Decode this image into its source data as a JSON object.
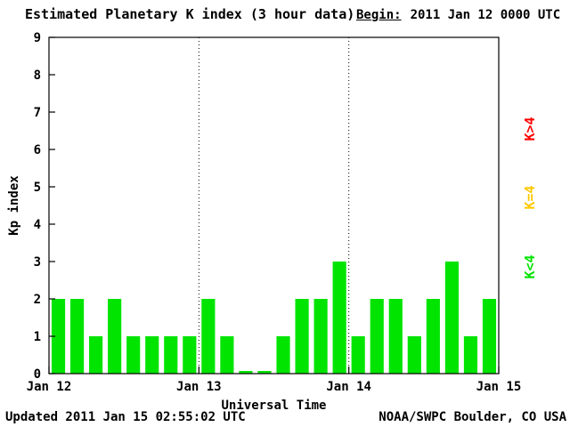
{
  "header": {
    "title": "Estimated Planetary K index (3 hour data)",
    "begin_label": "Begin:",
    "begin_value": "2011 Jan 12 0000 UTC"
  },
  "footer": {
    "updated": "Updated 2011 Jan 15 02:55:02 UTC",
    "source": "NOAA/SWPC Boulder, CO USA"
  },
  "chart_data": {
    "type": "bar",
    "title": "Estimated Planetary K index (3 hour data)",
    "xlabel": "Universal Time",
    "ylabel": "Kp index",
    "ylim": [
      0,
      9
    ],
    "y_ticks": [
      0,
      1,
      2,
      3,
      4,
      5,
      6,
      7,
      8,
      9
    ],
    "x_tick_labels": [
      "Jan 12",
      "Jan 13",
      "Jan 14",
      "Jan 15"
    ],
    "interval_hours": 3,
    "values": [
      2,
      2,
      1,
      2,
      1,
      1,
      1,
      1,
      2,
      1,
      0,
      0,
      1,
      2,
      2,
      3,
      1,
      2,
      2,
      1,
      2,
      3,
      1,
      2
    ],
    "bar_color": "#00e400",
    "day_divider_indices": [
      8,
      16
    ],
    "grid": "dotted-vertical-day-lines",
    "legend_position": "right-rotated",
    "legend": [
      {
        "label": "K>4",
        "color": "#ff0000"
      },
      {
        "label": "K=4",
        "color": "#ffc800"
      },
      {
        "label": "K<4",
        "color": "#00e400"
      }
    ]
  }
}
